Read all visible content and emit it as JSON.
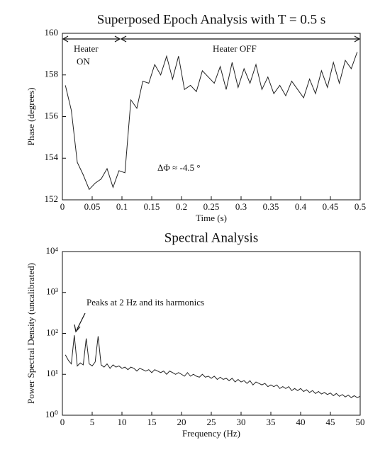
{
  "chart_data": [
    {
      "type": "line",
      "title": "Superposed Epoch Analysis with T = 0.5 s",
      "xlabel": "Time (s)",
      "ylabel": "Phase (degrees)",
      "color": "#222222",
      "x": [
        0.005,
        0.015,
        0.025,
        0.035,
        0.045,
        0.055,
        0.065,
        0.075,
        0.085,
        0.095,
        0.105,
        0.115,
        0.125,
        0.135,
        0.145,
        0.155,
        0.165,
        0.175,
        0.185,
        0.195,
        0.205,
        0.215,
        0.225,
        0.235,
        0.245,
        0.255,
        0.265,
        0.275,
        0.285,
        0.295,
        0.305,
        0.315,
        0.325,
        0.335,
        0.345,
        0.355,
        0.365,
        0.375,
        0.385,
        0.395,
        0.405,
        0.415,
        0.425,
        0.435,
        0.445,
        0.455,
        0.465,
        0.475,
        0.485,
        0.495
      ],
      "values": [
        157.5,
        156.3,
        153.8,
        153.2,
        152.5,
        152.8,
        153.0,
        153.5,
        152.6,
        153.4,
        153.3,
        156.8,
        156.4,
        157.7,
        157.6,
        158.5,
        158.0,
        158.9,
        157.8,
        158.9,
        157.3,
        157.5,
        157.2,
        158.2,
        157.9,
        157.6,
        158.4,
        157.3,
        158.6,
        157.4,
        158.3,
        157.6,
        158.5,
        157.3,
        157.9,
        157.1,
        157.5,
        157.0,
        157.7,
        157.3,
        156.9,
        157.8,
        157.1,
        158.2,
        157.4,
        158.6,
        157.6,
        158.7,
        158.3,
        159.1
      ],
      "xlim": [
        0,
        0.5
      ],
      "ylim": [
        152,
        160
      ],
      "xticks": [
        0,
        0.05,
        0.1,
        0.15,
        0.2,
        0.25,
        0.3,
        0.35,
        0.4,
        0.45,
        0.5
      ],
      "yticks": [
        152,
        154,
        156,
        158,
        160
      ],
      "annotations": [
        "Heater",
        "ON",
        "Heater OFF",
        "ΔΦ ≈ -4.5 °"
      ]
    },
    {
      "type": "line",
      "title": "Spectral Analysis",
      "xlabel": "Frequency (Hz)",
      "ylabel": "Power Spectral Density (uncalibrated)",
      "color": "#222222",
      "log_y": true,
      "x": [
        0.5,
        1,
        1.5,
        2,
        2.5,
        3,
        3.5,
        4,
        4.5,
        5,
        5.5,
        6,
        6.5,
        7,
        7.5,
        8,
        8.5,
        9,
        9.5,
        10,
        10.5,
        11,
        11.5,
        12,
        12.5,
        13,
        13.5,
        14,
        14.5,
        15,
        15.5,
        16,
        16.5,
        17,
        17.5,
        18,
        18.5,
        19,
        19.5,
        20,
        20.5,
        21,
        21.5,
        22,
        22.5,
        23,
        23.5,
        24,
        24.5,
        25,
        25.5,
        26,
        26.5,
        27,
        27.5,
        28,
        28.5,
        29,
        29.5,
        30,
        30.5,
        31,
        31.5,
        32,
        32.5,
        33,
        33.5,
        34,
        34.5,
        35,
        35.5,
        36,
        36.5,
        37,
        37.5,
        38,
        38.5,
        39,
        39.5,
        40,
        40.5,
        41,
        41.5,
        42,
        42.5,
        43,
        43.5,
        44,
        44.5,
        45,
        45.5,
        46,
        46.5,
        47,
        47.5,
        48,
        48.5,
        49,
        49.5,
        50
      ],
      "values": [
        30,
        22,
        18,
        90,
        16,
        19,
        17,
        75,
        18,
        16,
        20,
        85,
        17,
        15,
        18,
        14,
        17,
        15,
        16,
        14,
        15,
        13,
        15,
        14,
        12,
        14,
        13,
        12,
        13,
        11,
        13,
        12,
        11,
        12,
        10,
        12,
        11,
        10,
        11,
        10,
        9,
        11,
        9,
        10,
        9,
        8.5,
        10,
        8.5,
        9,
        8,
        9,
        7.5,
        8.5,
        7.5,
        8,
        7,
        8,
        6.5,
        7.5,
        6.5,
        7,
        6,
        7,
        5.5,
        6.5,
        6,
        5.5,
        6,
        5,
        5.5,
        5,
        5.5,
        4.5,
        5,
        4.5,
        5,
        4,
        4.5,
        4,
        4.5,
        3.8,
        4.2,
        3.6,
        4,
        3.4,
        3.8,
        3.3,
        3.6,
        3.2,
        3.5,
        3,
        3.4,
        2.9,
        3.2,
        2.8,
        3.1,
        2.7,
        3,
        2.7,
        2.9
      ],
      "xlim": [
        0,
        50
      ],
      "ylim": [
        1,
        10000
      ],
      "xticks": [
        0,
        5,
        10,
        15,
        20,
        25,
        30,
        35,
        40,
        45,
        50
      ],
      "yticks": [
        {
          "value": 1,
          "label": "10⁰"
        },
        {
          "value": 10,
          "label": "10¹"
        },
        {
          "value": 100,
          "label": "10²"
        },
        {
          "value": 1000,
          "label": "10³"
        },
        {
          "value": 10000,
          "label": "10⁴"
        }
      ],
      "annotations": [
        "Peaks at 2 Hz and its harmonics"
      ]
    }
  ]
}
